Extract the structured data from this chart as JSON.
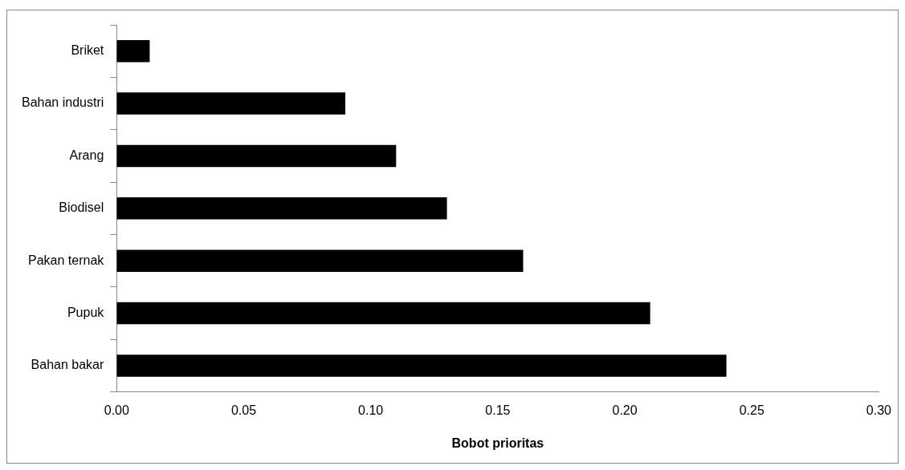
{
  "chart_data": {
    "type": "bar",
    "orientation": "horizontal",
    "xlabel": "Bobot prioritas",
    "categories": [
      "Briket",
      "Bahan industri",
      "Arang",
      "Biodisel",
      "Pakan ternak",
      "Pupuk",
      "Bahan bakar"
    ],
    "values": [
      0.013,
      0.09,
      0.11,
      0.13,
      0.16,
      0.21,
      0.24
    ],
    "color": "#000000",
    "xlim": [
      0,
      0.3
    ],
    "xticks": [
      {
        "value": 0,
        "label": "0.00"
      },
      {
        "value": 0.05,
        "label": "0.05"
      },
      {
        "value": 0.1,
        "label": "0.10"
      },
      {
        "value": 0.15,
        "label": "0.15"
      },
      {
        "value": 0.2,
        "label": "0.20"
      },
      {
        "value": 0.25,
        "label": "0.25"
      },
      {
        "value": 0.3,
        "label": "0.30"
      }
    ]
  }
}
